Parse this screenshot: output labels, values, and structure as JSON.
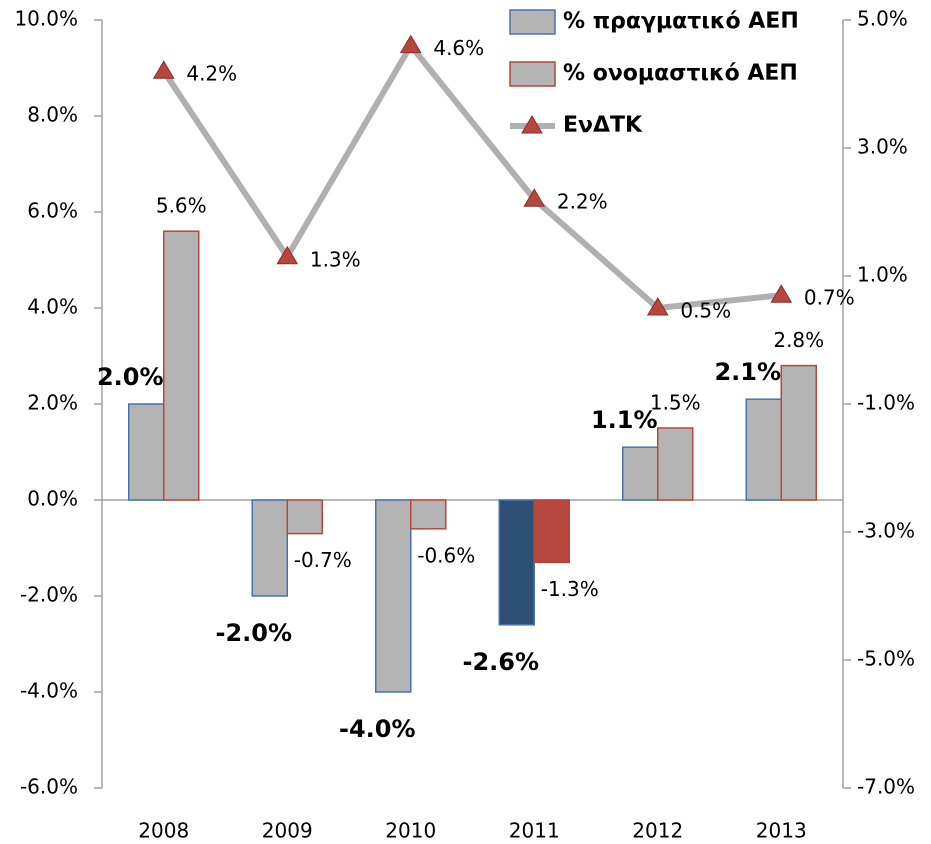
{
  "chart_data": {
    "type": "bar-line",
    "categories": [
      "2008",
      "2009",
      "2010",
      "2011",
      "2012",
      "2013"
    ],
    "ylim": [
      -6,
      10
    ],
    "yticks": [
      {
        "value": -6,
        "label": "-6.0%"
      },
      {
        "value": -4,
        "label": "-4.0%"
      },
      {
        "value": -2,
        "label": "-2.0%"
      },
      {
        "value": 0,
        "label": "0.0%"
      },
      {
        "value": 2,
        "label": "2.0%"
      },
      {
        "value": 4,
        "label": "4.0%"
      },
      {
        "value": 6,
        "label": "6.0%"
      },
      {
        "value": 8,
        "label": "8.0%"
      },
      {
        "value": 10,
        "label": "10.0%"
      }
    ],
    "y2lim": [
      -7,
      5
    ],
    "y2ticks": [
      {
        "value": -7,
        "label": "-7.0%"
      },
      {
        "value": -5,
        "label": "-5.0%"
      },
      {
        "value": -3,
        "label": "-3.0%"
      },
      {
        "value": -1,
        "label": "-1.0%"
      },
      {
        "value": 1,
        "label": "1.0%"
      },
      {
        "value": 3,
        "label": "3.0%"
      },
      {
        "value": 5,
        "label": "5.0%"
      }
    ],
    "grid": false,
    "legend": "top-right",
    "series": [
      {
        "name": "% πραγματικό ΑΕΠ",
        "type": "bar",
        "color": "#4a72a8",
        "fill": [
          "#b4b4b4",
          "#b4b4b4",
          "#b4b4b4",
          "#2e5077",
          "#b4b4b4",
          "#b4b4b4"
        ],
        "values": [
          2.0,
          -2.0,
          -4.0,
          -2.6,
          1.1,
          2.1
        ],
        "value_labels": [
          "2.0%",
          "-2.0%",
          "-4.0%",
          "-2.6%",
          "1.1%",
          "2.1%"
        ]
      },
      {
        "name": "% ονομαστικό ΑΕΠ",
        "type": "bar",
        "color": "#b5473f",
        "fill": [
          "#b4b4b4",
          "#b4b4b4",
          "#b4b4b4",
          "#b5473f",
          "#b4b4b4",
          "#b4b4b4"
        ],
        "values": [
          5.6,
          -0.7,
          -0.6,
          -1.3,
          1.5,
          2.8
        ],
        "value_labels": [
          "5.6%",
          "-0.7%",
          "-0.6%",
          "-1.3%",
          "1.5%",
          "2.8%"
        ]
      },
      {
        "name": "ΕνΔΤΚ",
        "type": "line",
        "axis": "y2",
        "color": "#b0b0b0",
        "marker_color": "#b5473f",
        "values": [
          4.2,
          1.3,
          4.6,
          2.2,
          0.5,
          0.7
        ],
        "value_labels": [
          "4.2%",
          "1.3%",
          "4.6%",
          "2.2%",
          "0.5%",
          "0.7%"
        ]
      }
    ]
  }
}
